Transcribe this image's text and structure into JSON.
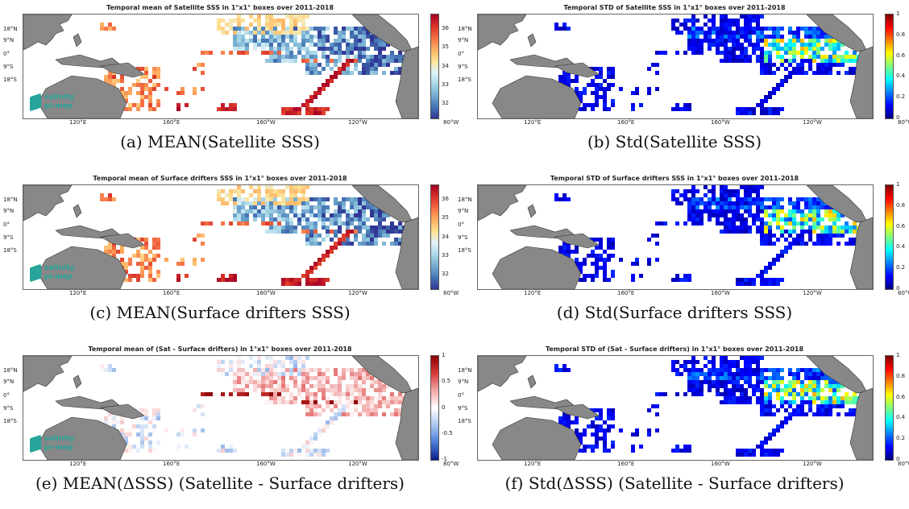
{
  "lat_labels": [
    "18°N",
    "9°N",
    "0°",
    "9°S",
    "18°S"
  ],
  "lon_labels": [
    "120°E",
    "160°E",
    "160°W",
    "120°W",
    "80°W"
  ],
  "logo": {
    "line1": "salinity",
    "line2": "pi-mep"
  },
  "panels": [
    {
      "title": "Temporal mean of Satellite SSS in 1°x1° boxes over 2011-2018",
      "caption": "(a) MEAN(Satellite SSS)",
      "colormap": "rdylbu-reversed",
      "colorbar_ticks": [
        "36",
        "35",
        "34",
        "33",
        "32"
      ],
      "colorbar_range": [
        31.2,
        36.8
      ]
    },
    {
      "title": "Temporal STD of Satellite SSS in 1°x1° boxes over 2011-2018",
      "caption": "(b) Std(Satellite SSS)",
      "colormap": "jet",
      "colorbar_ticks": [
        "1",
        "0.8",
        "0.6",
        "0.4",
        "0.2",
        "0"
      ],
      "colorbar_range": [
        0,
        1
      ]
    },
    {
      "title": "Temporal mean of Surface drifters SSS in 1°x1° boxes over 2011-2018",
      "caption": "(c) MEAN(Surface drifters SSS)",
      "colormap": "rdylbu-reversed",
      "colorbar_ticks": [
        "36",
        "35",
        "34",
        "33",
        "32"
      ],
      "colorbar_range": [
        31.2,
        36.8
      ]
    },
    {
      "title": "Temporal STD of Surface drifters SSS in 1°x1° boxes over 2011-2018",
      "caption": "(d) Std(Surface drifters SSS)",
      "colormap": "jet",
      "colorbar_ticks": [
        "1",
        "0.8",
        "0.6",
        "0.4",
        "0.2",
        "0"
      ],
      "colorbar_range": [
        0,
        1
      ]
    },
    {
      "title": "Temporal mean of (Sat - Surface drifters) in 1°x1° boxes over 2011-2018",
      "caption": "(e) MEAN(ΔSSS) (Satellite - Surface drifters)",
      "colormap": "blue-white-red",
      "colorbar_ticks": [
        "1",
        "0.5",
        "0",
        "-0.5",
        "-1"
      ],
      "colorbar_range": [
        -1,
        1
      ]
    },
    {
      "title": "Temporal STD of (Sat - Surface drifters) in 1°x1° boxes over 2011-2018",
      "caption": "(f) Std(ΔSSS) (Satellite - Surface drifters)",
      "colormap": "jet",
      "colorbar_ticks": [
        "1",
        "0.8",
        "0.6",
        "0.4",
        "0.2",
        "0"
      ],
      "colorbar_range": [
        0,
        1
      ]
    }
  ]
}
